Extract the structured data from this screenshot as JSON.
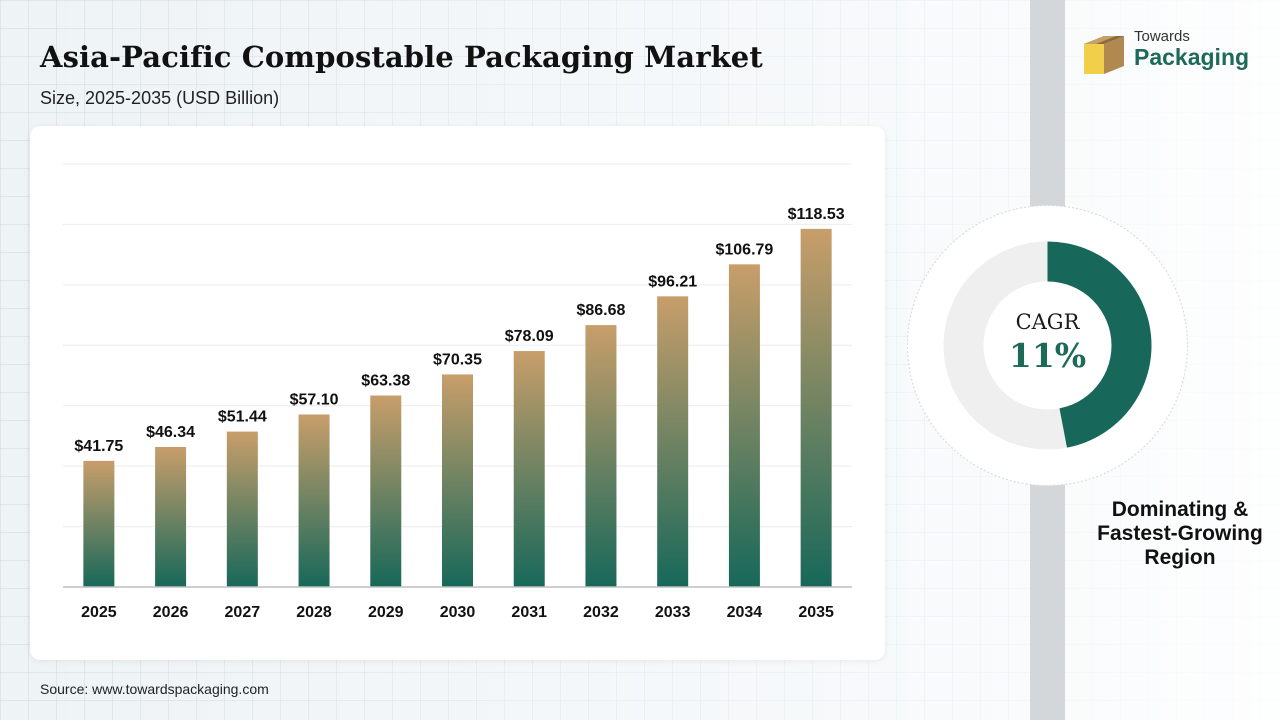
{
  "header": {
    "title": "Asia-Pacific Compostable Packaging Market",
    "subtitle": "Size, 2025-2035 (USD Billion)"
  },
  "brand": {
    "line1": "Towards",
    "line2": "Packaging",
    "colors": {
      "green": "#1e6a5a",
      "yellow": "#f2cf4a",
      "brown": "#b08850"
    }
  },
  "chart_data": {
    "type": "bar",
    "categories": [
      "2025",
      "2026",
      "2027",
      "2028",
      "2029",
      "2030",
      "2031",
      "2032",
      "2033",
      "2034",
      "2035"
    ],
    "values": [
      41.75,
      46.34,
      51.44,
      57.1,
      63.38,
      70.35,
      78.09,
      86.68,
      96.21,
      106.79,
      118.53
    ],
    "value_labels": [
      "$41.75",
      "$46.34",
      "$51.44",
      "$57.10",
      "$63.38",
      "$70.35",
      "$78.09",
      "$86.68",
      "$96.21",
      "$106.79",
      "$118.53"
    ],
    "ylim": [
      0,
      140
    ],
    "grid": true,
    "bar_gradient": {
      "top": "#c89e6a",
      "bottom": "#17685a"
    }
  },
  "cagr": {
    "label": "CAGR",
    "value": "11%",
    "fraction": 0.47,
    "colors": {
      "fill": "#17685a",
      "track": "#efefef"
    }
  },
  "region": {
    "line1": "Dominating &",
    "line2": "Fastest-Growing",
    "line3": "Region"
  },
  "footer": {
    "source": "Source: www.towardspackaging.com"
  }
}
